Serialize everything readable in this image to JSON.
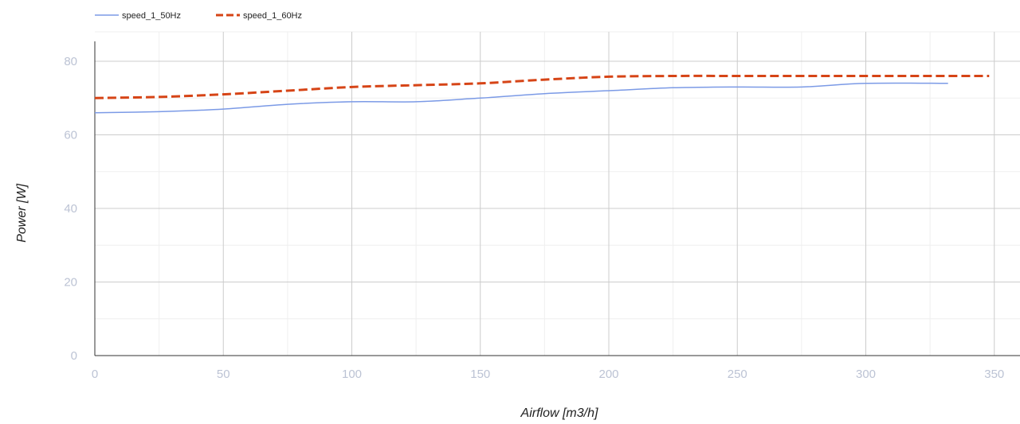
{
  "chart_data": {
    "type": "line",
    "title": "",
    "xlabel": "Airflow [m3/h]",
    "ylabel": "Power [W]",
    "xlim": [
      0,
      360
    ],
    "ylim": [
      0,
      88
    ],
    "x_ticks": [
      0,
      50,
      100,
      150,
      200,
      250,
      300,
      350
    ],
    "y_ticks": [
      0,
      20,
      40,
      60,
      80
    ],
    "x_minor_ticks": [
      25,
      75,
      125,
      175,
      225,
      275,
      325
    ],
    "y_minor_ticks": [
      10,
      30,
      50,
      70
    ],
    "grid": true,
    "legend_position": "top-left",
    "series": [
      {
        "name": "speed_1_50Hz",
        "color": "#7b9ae6",
        "style": "solid",
        "x": [
          0,
          25,
          50,
          75,
          100,
          125,
          150,
          175,
          200,
          225,
          250,
          275,
          300,
          332
        ],
        "y": [
          66,
          66.3,
          67,
          68.3,
          69,
          69,
          70,
          71.2,
          72,
          72.8,
          73,
          73,
          74,
          74
        ]
      },
      {
        "name": "speed_1_60Hz",
        "color": "#d64416",
        "style": "dashed",
        "x": [
          0,
          25,
          50,
          75,
          100,
          125,
          150,
          175,
          200,
          225,
          250,
          275,
          300,
          348
        ],
        "y": [
          70,
          70.3,
          71,
          72,
          73,
          73.5,
          74,
          75,
          75.8,
          76,
          76,
          76,
          76,
          76
        ]
      }
    ]
  }
}
